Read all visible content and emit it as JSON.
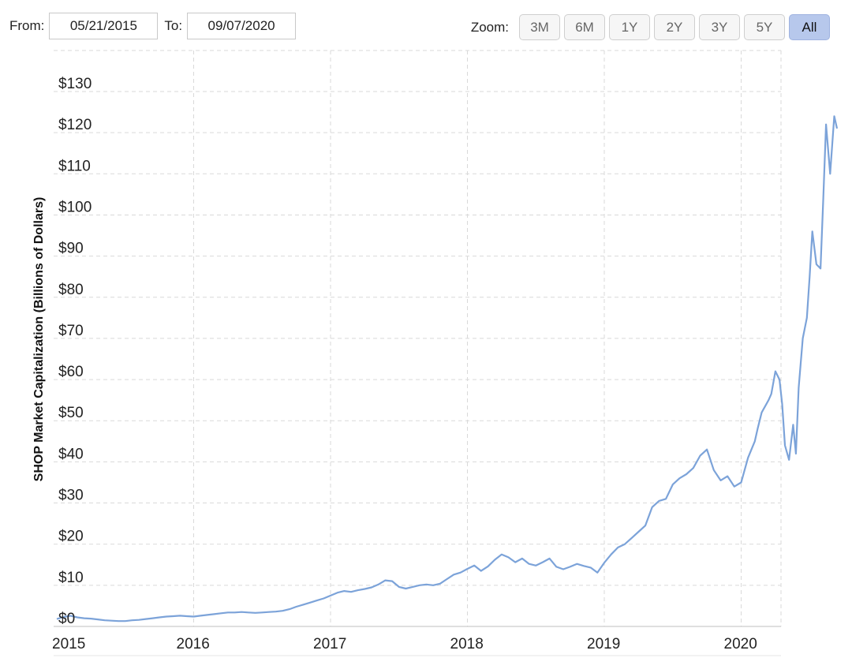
{
  "range_selector": {
    "from_label": "From:",
    "from_value": "05/21/2015",
    "to_label": "To:",
    "to_value": "09/07/2020"
  },
  "zoom": {
    "label": "Zoom:",
    "buttons": [
      "3M",
      "6M",
      "1Y",
      "2Y",
      "3Y",
      "5Y",
      "All"
    ],
    "active": "All"
  },
  "colors": {
    "series": "#7ca3d9",
    "grid": "#d9d9d9",
    "active_zoom": "#b7c8ec"
  },
  "chart_data": {
    "type": "line",
    "title": "",
    "xlabel": "",
    "ylabel": "SHOP Market Capitalization (Billions of Dollars)",
    "ylim": [
      0,
      130
    ],
    "xlim": [
      2015.0,
      2020.75
    ],
    "yticks": [
      0,
      10,
      20,
      30,
      40,
      50,
      60,
      70,
      80,
      90,
      100,
      110,
      120,
      130
    ],
    "ytick_labels": [
      "$0",
      "$10",
      "$20",
      "$30",
      "$40",
      "$50",
      "$60",
      "$70",
      "$80",
      "$90",
      "$100",
      "$110",
      "$120",
      "$130"
    ],
    "xticks": [
      2015,
      2016,
      2017,
      2018,
      2019,
      2020
    ],
    "xtick_labels": [
      "2015",
      "2016",
      "2017",
      "2018",
      "2019",
      "2020"
    ],
    "grid": true,
    "grid_style": "dashed",
    "legend": "none",
    "series": [
      {
        "x": [
          2015.0,
          2015.05,
          2015.1,
          2015.15,
          2015.2,
          2015.25,
          2015.3,
          2015.35,
          2015.4,
          2015.45,
          2015.5,
          2015.55,
          2015.6,
          2015.65,
          2015.7,
          2015.75,
          2015.8,
          2015.85,
          2015.9,
          2015.95,
          2016.0,
          2016.05,
          2016.1,
          2016.15,
          2016.2,
          2016.25,
          2016.3,
          2016.35,
          2016.4,
          2016.45,
          2016.5,
          2016.55,
          2016.6,
          2016.65,
          2016.7,
          2016.75,
          2016.8,
          2016.85,
          2016.9,
          2016.95,
          2017.0,
          2017.05,
          2017.1,
          2017.15,
          2017.2,
          2017.25,
          2017.3,
          2017.35,
          2017.4,
          2017.45,
          2017.5,
          2017.55,
          2017.6,
          2017.65,
          2017.7,
          2017.75,
          2017.8,
          2017.85,
          2017.9,
          2017.95,
          2018.0,
          2018.05,
          2018.1,
          2018.15,
          2018.2,
          2018.25,
          2018.3,
          2018.35,
          2018.4,
          2018.45,
          2018.5,
          2018.55,
          2018.6,
          2018.65,
          2018.7,
          2018.75,
          2018.8,
          2018.85,
          2018.9,
          2018.95,
          2019.0,
          2019.05,
          2019.1,
          2019.15,
          2019.2,
          2019.25,
          2019.3,
          2019.35,
          2019.4,
          2019.45,
          2019.5,
          2019.55,
          2019.6,
          2019.65,
          2019.7,
          2019.75,
          2019.8,
          2019.85,
          2019.9,
          2019.95,
          2020.0,
          2020.05,
          2020.1,
          2020.12,
          2020.15,
          2020.2,
          2020.22,
          2020.25,
          2020.28,
          2020.3,
          2020.32,
          2020.35,
          2020.38,
          2020.4,
          2020.42,
          2020.45,
          2020.48,
          2020.5,
          2020.52,
          2020.55,
          2020.58,
          2020.6,
          2020.62,
          2020.65,
          2020.68,
          2020.7
        ],
        "values": [
          1.8,
          2.3,
          2.6,
          2.2,
          2.0,
          1.9,
          1.7,
          1.5,
          1.4,
          1.3,
          1.3,
          1.5,
          1.6,
          1.8,
          2.0,
          2.2,
          2.4,
          2.5,
          2.6,
          2.5,
          2.4,
          2.6,
          2.8,
          3.0,
          3.2,
          3.4,
          3.4,
          3.5,
          3.4,
          3.3,
          3.4,
          3.5,
          3.6,
          3.8,
          4.2,
          4.8,
          5.3,
          5.8,
          6.3,
          6.8,
          7.5,
          8.2,
          8.6,
          8.4,
          8.8,
          9.1,
          9.5,
          10.2,
          11.2,
          11.0,
          9.6,
          9.2,
          9.6,
          10.0,
          10.2,
          10.0,
          10.4,
          11.5,
          12.6,
          13.1,
          14.0,
          14.8,
          13.5,
          14.6,
          16.2,
          17.5,
          16.8,
          15.6,
          16.5,
          15.2,
          14.8,
          15.6,
          16.5,
          14.5,
          13.9,
          14.5,
          15.2,
          14.7,
          14.3,
          13.1,
          15.5,
          17.5,
          19.2,
          20.0,
          21.5,
          23.0,
          24.5,
          29.0,
          30.5,
          31.0,
          34.5,
          36.0,
          37.0,
          38.5,
          41.5,
          43.0,
          38.0,
          35.5,
          36.5,
          34.0,
          35.0,
          41.0,
          45.0,
          48.0,
          52.0,
          55.0,
          56.5,
          62.0,
          60.0,
          54.0,
          44.0,
          40.5,
          49.0,
          42.0,
          58.0,
          70.0,
          75.0,
          85.0,
          96.0,
          88.0,
          87.0,
          104.0,
          122.0,
          110.0,
          124.0,
          121.0
        ]
      }
    ]
  }
}
